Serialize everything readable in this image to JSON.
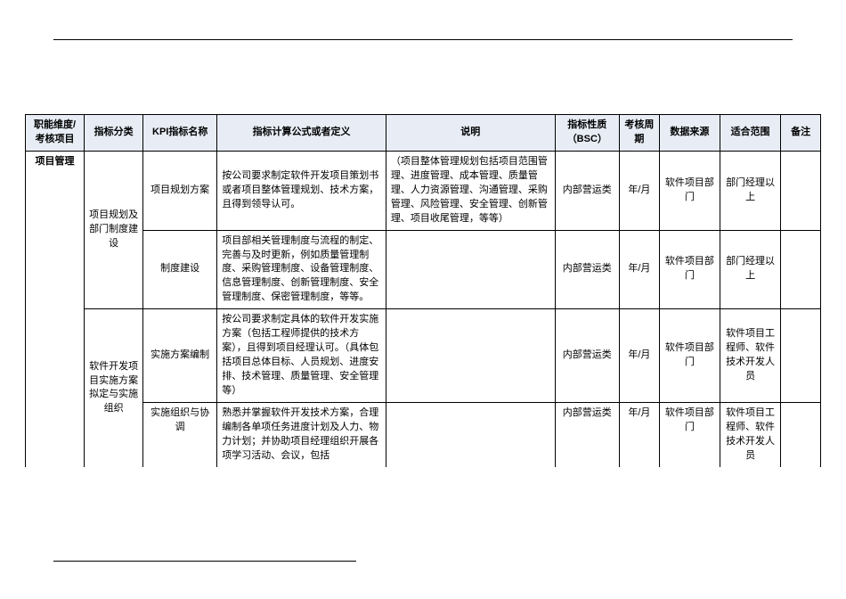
{
  "columns": {
    "c1": "职能维度/考核项目",
    "c2": "指标分类",
    "c3": "KPI指标名称",
    "c4": "指标计算公式或者定义",
    "c5": "说明",
    "c6": "指标性质（BSC）",
    "c7": "考核周期",
    "c8": "数据来源",
    "c9": "适合范围",
    "c10": "备注"
  },
  "rows": {
    "r1": {
      "dim": "项目管理",
      "cat": "项目规划及部门制度建设",
      "kpi": "项目规划方案",
      "formula": "按公司要求制定软件开发项目策划书或者项目整体管理规划、技术方案，且得到领导认可。",
      "desc": "（项目整体管理规划包括项目范围管理、进度管理、成本管理、质量管理、人力资源管理、沟通管理、采购管理、风险管理、安全管理、创新管理、项目收尾管理，等等）",
      "bsc": "内部营运类",
      "cycle": "年/月",
      "source": "软件项目部门",
      "scope": "部门经理以上",
      "remark": ""
    },
    "r2": {
      "kpi": "制度建设",
      "formula": "项目部相关管理制度与流程的制定、完善与及时更新，例如质量管理制度、采购管理制度、设备管理制度、信息管理制度、创新管理制度、安全管理制度、保密管理制度，等等。",
      "desc": "",
      "bsc": "内部营运类",
      "cycle": "年/月",
      "source": "软件项目部门",
      "scope": "部门经理以上",
      "remark": ""
    },
    "r3": {
      "cat": "软件开发项目实施方案拟定与实施组织",
      "kpi": "实施方案编制",
      "formula": "按公司要求制定具体的软件开发实施方案（包括工程师提供的技术方案），且得到项目经理认可。（具体包括项目总体目标、人员规划、进度安排、技术管理、质量管理、安全管理等）",
      "desc": "",
      "bsc": "内部营运类",
      "cycle": "年/月",
      "source": "软件项目部门",
      "scope": "软件项目工程师、软件技术开发人员",
      "remark": ""
    },
    "r4": {
      "kpi": "实施组织与协调",
      "formula": "熟悉并掌握软件开发技术方案，合理编制各单项任务进度计划及人力、物力计划；并协助项目经理组织开展各项学习活动、会议，包括",
      "desc": "",
      "bsc": "内部营运类",
      "cycle": "年/月",
      "source": "软件项目部门",
      "scope": "软件项目工程师、软件技术开发人员",
      "remark": ""
    }
  }
}
